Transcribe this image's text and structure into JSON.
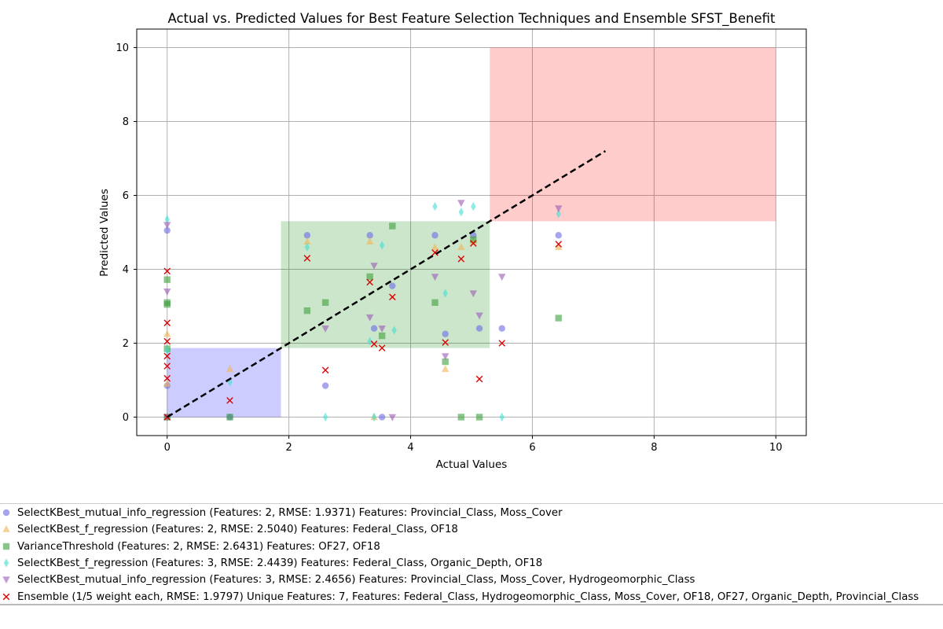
{
  "chart_data": {
    "type": "scatter",
    "title": "Actual vs. Predicted Values for Best Feature Selection Techniques and Ensemble SFST_Benefit",
    "xlabel": "Actual Values",
    "ylabel": "Predicted Values",
    "xlim": [
      -0.5,
      10.5
    ],
    "ylim": [
      -0.5,
      10.5
    ],
    "xticks": [
      0,
      2,
      4,
      6,
      8,
      10
    ],
    "yticks": [
      0,
      2,
      4,
      6,
      8,
      10
    ],
    "grid": true,
    "legend_position": "bottom",
    "reference_line": {
      "x": [
        0,
        7.2
      ],
      "y": [
        0,
        7.2
      ],
      "color": "#000000",
      "style": "dashed"
    },
    "regions": [
      {
        "x": [
          0,
          1.87
        ],
        "y": [
          0,
          1.87
        ],
        "color": "#0000ff",
        "opacity": 0.2
      },
      {
        "x": [
          1.87,
          5.3
        ],
        "y": [
          1.87,
          5.3
        ],
        "color": "#008000",
        "opacity": 0.2
      },
      {
        "x": [
          5.3,
          10
        ],
        "y": [
          5.3,
          10
        ],
        "color": "#ff0000",
        "opacity": 0.2
      }
    ],
    "series": [
      {
        "name": "SelectKBest_mutual_info_regression (Features: 2, RMSE: 1.9371) Features: Provincial_Class, Moss_Cover",
        "marker": "circle",
        "color": "#6a6ae6",
        "points": [
          [
            0,
            5.05
          ],
          [
            0,
            0.85
          ],
          [
            0,
            0
          ],
          [
            1.03,
            0
          ],
          [
            2.3,
            4.92
          ],
          [
            2.6,
            0.85
          ],
          [
            3.33,
            4.92
          ],
          [
            3.4,
            2.4
          ],
          [
            3.53,
            0
          ],
          [
            3.7,
            3.55
          ],
          [
            4.4,
            4.92
          ],
          [
            4.57,
            2.25
          ],
          [
            5.03,
            4.92
          ],
          [
            5.13,
            2.4
          ],
          [
            5.5,
            2.4
          ],
          [
            6.43,
            4.92
          ]
        ]
      },
      {
        "name": "SelectKBest_f_regression (Features: 2, RMSE: 2.5040) Features: Federal_Class, OF18",
        "marker": "triangle-up",
        "color": "#f2b450",
        "points": [
          [
            0,
            2.25
          ],
          [
            0,
            0.9
          ],
          [
            0,
            0
          ],
          [
            1.03,
            1.3
          ],
          [
            2.3,
            4.75
          ],
          [
            3.33,
            4.75
          ],
          [
            3.4,
            0
          ],
          [
            4.4,
            4.6
          ],
          [
            4.57,
            1.3
          ],
          [
            4.83,
            4.6
          ],
          [
            5.03,
            4.75
          ],
          [
            6.43,
            4.6
          ]
        ]
      },
      {
        "name": "VarianceThreshold (Features: 2, RMSE: 2.6431) Features: OF27, OF18",
        "marker": "square",
        "color": "#3ca03c",
        "points": [
          [
            0,
            3.72
          ],
          [
            0,
            3.1
          ],
          [
            0,
            3.05
          ],
          [
            0,
            1.85
          ],
          [
            0,
            0
          ],
          [
            1.03,
            0
          ],
          [
            2.3,
            2.88
          ],
          [
            2.6,
            3.1
          ],
          [
            3.33,
            3.8
          ],
          [
            3.53,
            2.2
          ],
          [
            3.7,
            5.17
          ],
          [
            4.4,
            3.1
          ],
          [
            4.57,
            1.5
          ],
          [
            4.83,
            0
          ],
          [
            5.13,
            0
          ],
          [
            5.03,
            4.8
          ],
          [
            6.43,
            2.68
          ]
        ]
      },
      {
        "name": "SelectKBest_f_regression (Features: 3, RMSE: 2.4439) Features: Federal_Class, Organic_Depth, OF18",
        "marker": "diamond",
        "color": "#40e0d0",
        "points": [
          [
            0,
            5.35
          ],
          [
            0,
            1.8
          ],
          [
            1.03,
            0.95
          ],
          [
            2.3,
            4.6
          ],
          [
            2.6,
            0
          ],
          [
            3.33,
            2.05
          ],
          [
            3.4,
            0
          ],
          [
            3.53,
            4.65
          ],
          [
            3.73,
            2.35
          ],
          [
            4.4,
            5.7
          ],
          [
            4.57,
            3.35
          ],
          [
            4.83,
            5.55
          ],
          [
            5.03,
            5.7
          ],
          [
            5.5,
            0
          ],
          [
            6.43,
            5.5
          ]
        ]
      },
      {
        "name": "SelectKBest_mutual_info_regression (Features: 3, RMSE: 2.4656) Features: Provincial_Class, Moss_Cover, Hydrogeomorphic_Class",
        "marker": "triangle-down",
        "color": "#9b59b6",
        "points": [
          [
            0,
            5.2
          ],
          [
            0,
            3.4
          ],
          [
            0,
            0
          ],
          [
            2.6,
            2.4
          ],
          [
            3.33,
            2.7
          ],
          [
            3.4,
            4.1
          ],
          [
            3.53,
            2.4
          ],
          [
            3.7,
            0
          ],
          [
            4.4,
            3.8
          ],
          [
            4.57,
            1.65
          ],
          [
            4.83,
            5.8
          ],
          [
            5.03,
            3.35
          ],
          [
            5.13,
            2.75
          ],
          [
            5.5,
            3.8
          ],
          [
            6.43,
            5.65
          ]
        ]
      },
      {
        "name": "Ensemble (1/5 weight each, RMSE: 1.9797) Unique Features: 7, Features: Federal_Class, Hydrogeomorphic_Class, Moss_Cover, OF18, OF27, Organic_Depth, Provincial_Class",
        "marker": "x",
        "color": "#e00000",
        "points": [
          [
            0,
            3.95
          ],
          [
            0,
            2.55
          ],
          [
            0,
            2.05
          ],
          [
            0,
            1.65
          ],
          [
            0,
            1.38
          ],
          [
            0,
            1.05
          ],
          [
            0,
            0
          ],
          [
            1.03,
            0.45
          ],
          [
            2.3,
            4.3
          ],
          [
            2.6,
            1.27
          ],
          [
            3.33,
            3.65
          ],
          [
            3.4,
            1.98
          ],
          [
            3.53,
            1.87
          ],
          [
            3.7,
            3.25
          ],
          [
            4.4,
            4.45
          ],
          [
            4.57,
            2.02
          ],
          [
            4.83,
            4.28
          ],
          [
            5.03,
            4.7
          ],
          [
            5.13,
            1.03
          ],
          [
            5.5,
            2.0
          ],
          [
            6.43,
            4.68
          ]
        ]
      }
    ]
  }
}
